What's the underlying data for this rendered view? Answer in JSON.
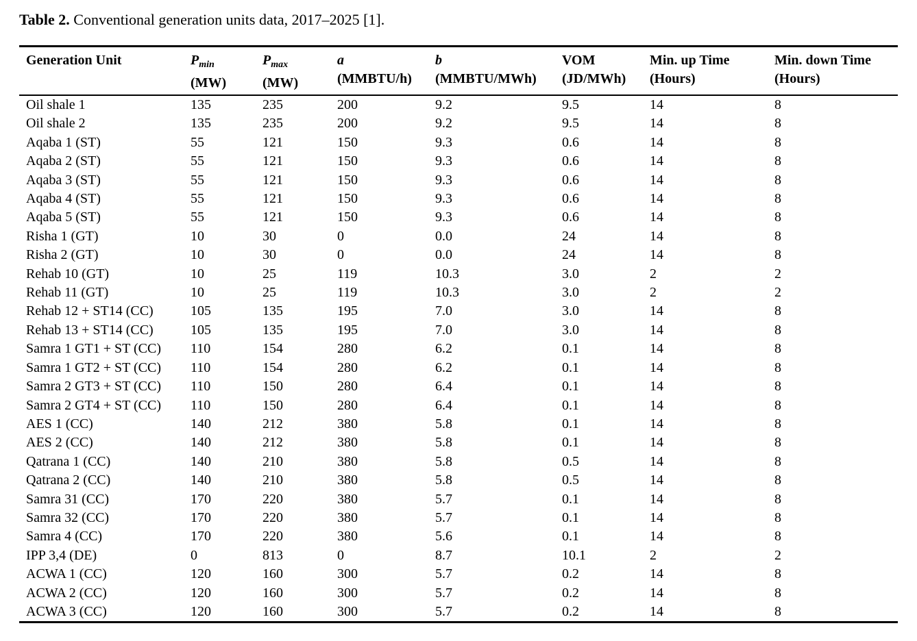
{
  "caption": {
    "label": "Table 2.",
    "text": " Conventional generation units data, 2017–2025 [1]."
  },
  "table": {
    "columns": [
      {
        "id": "generation-unit",
        "main": "Generation Unit",
        "sub": "",
        "unit": "",
        "math": false
      },
      {
        "id": "p-min",
        "main": "P",
        "sub": "min",
        "unit": "(MW)",
        "math": true
      },
      {
        "id": "p-max",
        "main": "P",
        "sub": "max",
        "unit": "(MW)",
        "math": true
      },
      {
        "id": "a",
        "main": "a",
        "sub": "",
        "unit": "(MMBTU/h)",
        "math": true
      },
      {
        "id": "b",
        "main": "b",
        "sub": "",
        "unit": "(MMBTU/MWh)",
        "math": true
      },
      {
        "id": "vom",
        "main": "VOM",
        "sub": "",
        "unit": "(JD/MWh)",
        "math": false
      },
      {
        "id": "min-up-time",
        "main": "Min. up Time",
        "sub": "",
        "unit": "(Hours)",
        "math": false
      },
      {
        "id": "min-down-time",
        "main": "Min. down Time",
        "sub": "",
        "unit": "(Hours)",
        "math": false
      }
    ],
    "rows": [
      [
        "Oil shale 1",
        "135",
        "235",
        "200",
        "9.2",
        "9.5",
        "14",
        "8"
      ],
      [
        "Oil shale 2",
        "135",
        "235",
        "200",
        "9.2",
        "9.5",
        "14",
        "8"
      ],
      [
        "Aqaba 1 (ST)",
        "55",
        "121",
        "150",
        "9.3",
        "0.6",
        "14",
        "8"
      ],
      [
        "Aqaba 2 (ST)",
        "55",
        "121",
        "150",
        "9.3",
        "0.6",
        "14",
        "8"
      ],
      [
        "Aqaba 3 (ST)",
        "55",
        "121",
        "150",
        "9.3",
        "0.6",
        "14",
        "8"
      ],
      [
        "Aqaba 4 (ST)",
        "55",
        "121",
        "150",
        "9.3",
        "0.6",
        "14",
        "8"
      ],
      [
        "Aqaba 5 (ST)",
        "55",
        "121",
        "150",
        "9.3",
        "0.6",
        "14",
        "8"
      ],
      [
        "Risha 1 (GT)",
        "10",
        "30",
        "0",
        "0.0",
        "24",
        "14",
        "8"
      ],
      [
        "Risha 2 (GT)",
        "10",
        "30",
        "0",
        "0.0",
        "24",
        "14",
        "8"
      ],
      [
        "Rehab 10 (GT)",
        "10",
        "25",
        "119",
        "10.3",
        "3.0",
        "2",
        "2"
      ],
      [
        "Rehab 11 (GT)",
        "10",
        "25",
        "119",
        "10.3",
        "3.0",
        "2",
        "2"
      ],
      [
        "Rehab 12 + ST14 (CC)",
        "105",
        "135",
        "195",
        "7.0",
        "3.0",
        "14",
        "8"
      ],
      [
        "Rehab 13 + ST14 (CC)",
        "105",
        "135",
        "195",
        "7.0",
        "3.0",
        "14",
        "8"
      ],
      [
        "Samra 1 GT1 + ST (CC)",
        "110",
        "154",
        "280",
        "6.2",
        "0.1",
        "14",
        "8"
      ],
      [
        "Samra 1 GT2 + ST (CC)",
        "110",
        "154",
        "280",
        "6.2",
        "0.1",
        "14",
        "8"
      ],
      [
        "Samra 2 GT3 + ST (CC)",
        "110",
        "150",
        "280",
        "6.4",
        "0.1",
        "14",
        "8"
      ],
      [
        "Samra 2 GT4 + ST (CC)",
        "110",
        "150",
        "280",
        "6.4",
        "0.1",
        "14",
        "8"
      ],
      [
        "AES 1 (CC)",
        "140",
        "212",
        "380",
        "5.8",
        "0.1",
        "14",
        "8"
      ],
      [
        "AES 2 (CC)",
        "140",
        "212",
        "380",
        "5.8",
        "0.1",
        "14",
        "8"
      ],
      [
        "Qatrana 1 (CC)",
        "140",
        "210",
        "380",
        "5.8",
        "0.5",
        "14",
        "8"
      ],
      [
        "Qatrana 2 (CC)",
        "140",
        "210",
        "380",
        "5.8",
        "0.5",
        "14",
        "8"
      ],
      [
        "Samra 31 (CC)",
        "170",
        "220",
        "380",
        "5.7",
        "0.1",
        "14",
        "8"
      ],
      [
        "Samra 32 (CC)",
        "170",
        "220",
        "380",
        "5.7",
        "0.1",
        "14",
        "8"
      ],
      [
        "Samra 4 (CC)",
        "170",
        "220",
        "380",
        "5.6",
        "0.1",
        "14",
        "8"
      ],
      [
        "IPP 3,4 (DE)",
        "0",
        "813",
        "0",
        "8.7",
        "10.1",
        "2",
        "2"
      ],
      [
        "ACWA 1 (CC)",
        "120",
        "160",
        "300",
        "5.7",
        "0.2",
        "14",
        "8"
      ],
      [
        "ACWA 2 (CC)",
        "120",
        "160",
        "300",
        "5.7",
        "0.2",
        "14",
        "8"
      ],
      [
        "ACWA 3 (CC)",
        "120",
        "160",
        "300",
        "5.7",
        "0.2",
        "14",
        "8"
      ]
    ]
  }
}
